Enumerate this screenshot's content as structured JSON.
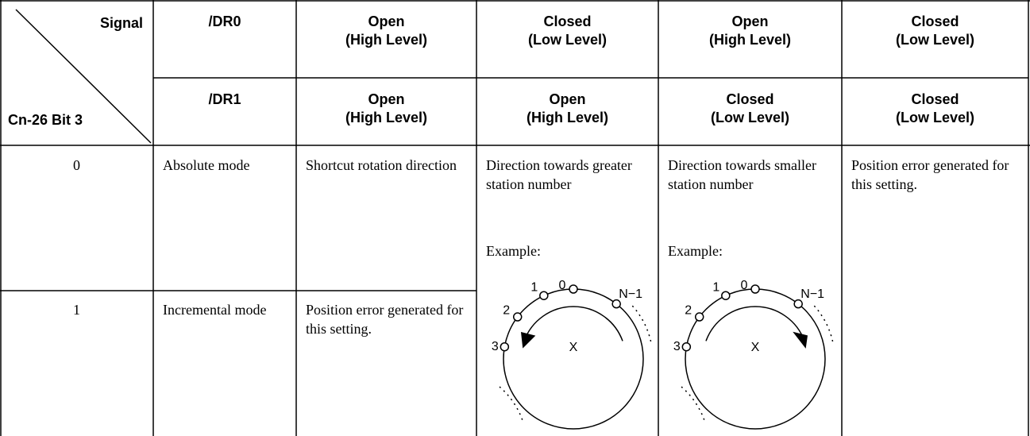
{
  "header": {
    "corner_top": "Signal",
    "corner_bottom": "Cn-26 Bit 3",
    "rows": [
      [
        "/DR0",
        "Open\n(High Level)",
        "Closed\n(Low Level)",
        "Open\n(High Level)",
        "Closed\n(Low Level)"
      ],
      [
        "/DR1",
        "Open\n(High Level)",
        "Open\n(High Level)",
        "Closed\n(Low Level)",
        "Closed\n(Low Level)"
      ]
    ]
  },
  "body": {
    "rows": [
      [
        "0",
        "Absolute mode",
        "Shortcut rotation direction"
      ],
      [
        "1",
        "Incremental mode",
        "Position error generated for this setting."
      ]
    ],
    "examples": [
      {
        "description": "Direction towards greater station number",
        "label": "Example:",
        "stations": [
          "0",
          "1",
          "2",
          "3",
          "N−1"
        ],
        "center": "X"
      },
      {
        "description": "Direction towards smaller station number",
        "label": "Example:",
        "stations": [
          "0",
          "1",
          "2",
          "3",
          "N−1"
        ],
        "center": "X"
      }
    ],
    "spanning_note": "Position error generated for this setting."
  }
}
